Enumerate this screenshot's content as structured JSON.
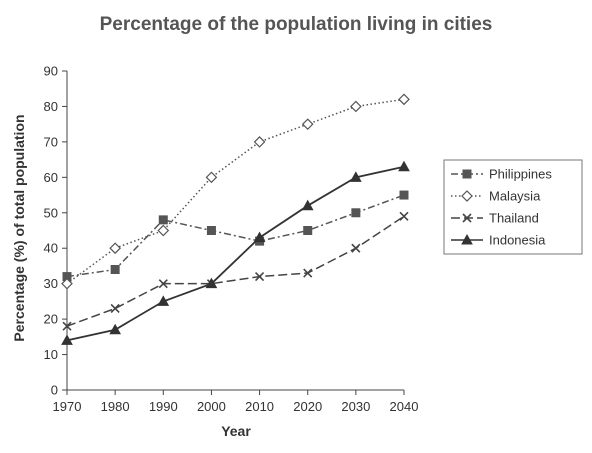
{
  "chart_data": {
    "type": "line",
    "title": "Percentage of the population living in cities",
    "xlabel": "Year",
    "ylabel": "Percentage (%) of total population",
    "x": [
      1970,
      1980,
      1990,
      2000,
      2010,
      2020,
      2030,
      2040
    ],
    "ylim": [
      0,
      90
    ],
    "yticks": [
      0,
      10,
      20,
      30,
      40,
      50,
      60,
      70,
      80,
      90
    ],
    "grid": false,
    "legend_position": "right",
    "series": [
      {
        "name": "Philippines",
        "marker": "square",
        "dash": "dash-dot",
        "color": "#555555",
        "values": [
          32,
          34,
          48,
          45,
          42,
          45,
          50,
          55
        ]
      },
      {
        "name": "Malaysia",
        "marker": "diamond",
        "dash": "dotted",
        "color": "#555555",
        "values": [
          30,
          40,
          45,
          60,
          70,
          75,
          80,
          82
        ]
      },
      {
        "name": "Thailand",
        "marker": "x",
        "dash": "dashed",
        "color": "#444444",
        "values": [
          18,
          23,
          30,
          30,
          32,
          33,
          40,
          49
        ]
      },
      {
        "name": "Indonesia",
        "marker": "triangle",
        "dash": "solid",
        "color": "#333333",
        "values": [
          14,
          17,
          25,
          30,
          43,
          52,
          60,
          63
        ]
      }
    ]
  }
}
